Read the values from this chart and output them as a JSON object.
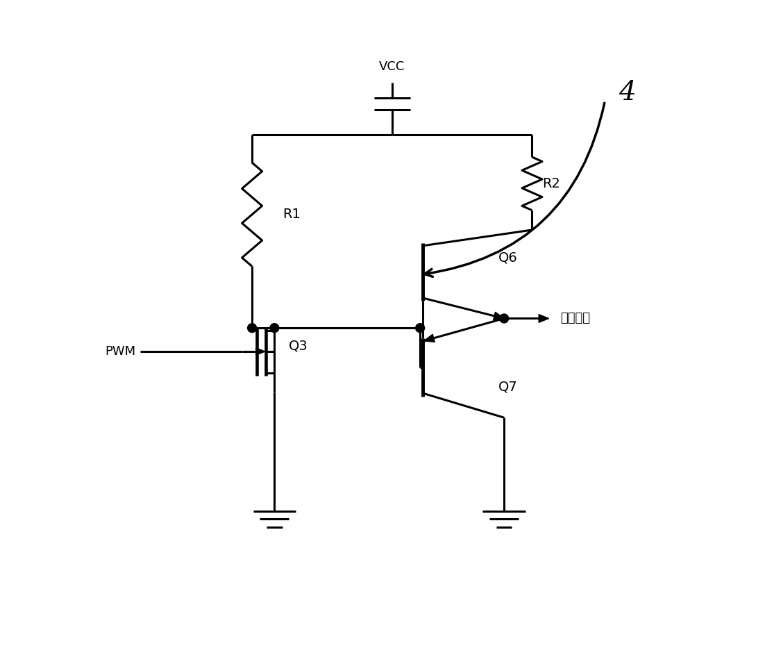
{
  "bg_color": "#ffffff",
  "line_color": "#000000",
  "lw": 2.2,
  "vcc_label": "VCC",
  "r1_label": "R1",
  "r2_label": "R2",
  "q3_label": "Q3",
  "q6_label": "Q6",
  "q7_label": "Q7",
  "pwm_label": "PWM",
  "output_label": "驱动输出",
  "note_number": "4",
  "fig_w": 11.02,
  "fig_h": 9.43
}
